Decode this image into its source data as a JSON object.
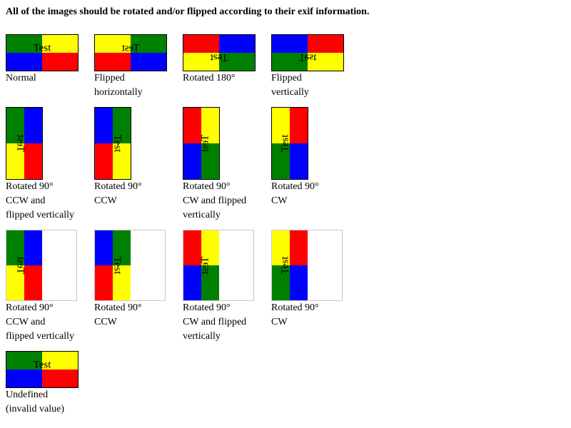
{
  "heading": "All of the images should be rotated and/or flipped according to their exif information.",
  "colors": {
    "green": "#008000",
    "yellow": "#ffff00",
    "blue": "#0000ff",
    "red": "#ff0000"
  },
  "image_text": "Test",
  "captions": {
    "normal": [
      "Normal"
    ],
    "flip_h": [
      "Flipped",
      "horizontally"
    ],
    "rot180": [
      "Rotated 180°"
    ],
    "flip_v": [
      "Flipped",
      "vertically"
    ],
    "r2_ccw_flip": [
      "Rotated 90°",
      "CCW and",
      "flipped vertically"
    ],
    "r2_ccw": [
      "Rotated 90°",
      "CCW"
    ],
    "r2_cw_flip": [
      "Rotated 90°",
      "CW and flipped",
      "vertically"
    ],
    "r2_cw": [
      "Rotated 90°",
      "CW"
    ],
    "r3_ccw_flip": [
      "Rotated 90°",
      "CCW and",
      "flipped vertically"
    ],
    "r3_ccw": [
      "Rotated 90°",
      "CCW"
    ],
    "r3_cw_flip": [
      "Rotated 90°",
      "CW and flipped",
      "vertically"
    ],
    "r3_cw": [
      "Rotated 90°",
      "CW"
    ],
    "undefined": [
      "Undefined",
      "(invalid value)"
    ]
  }
}
